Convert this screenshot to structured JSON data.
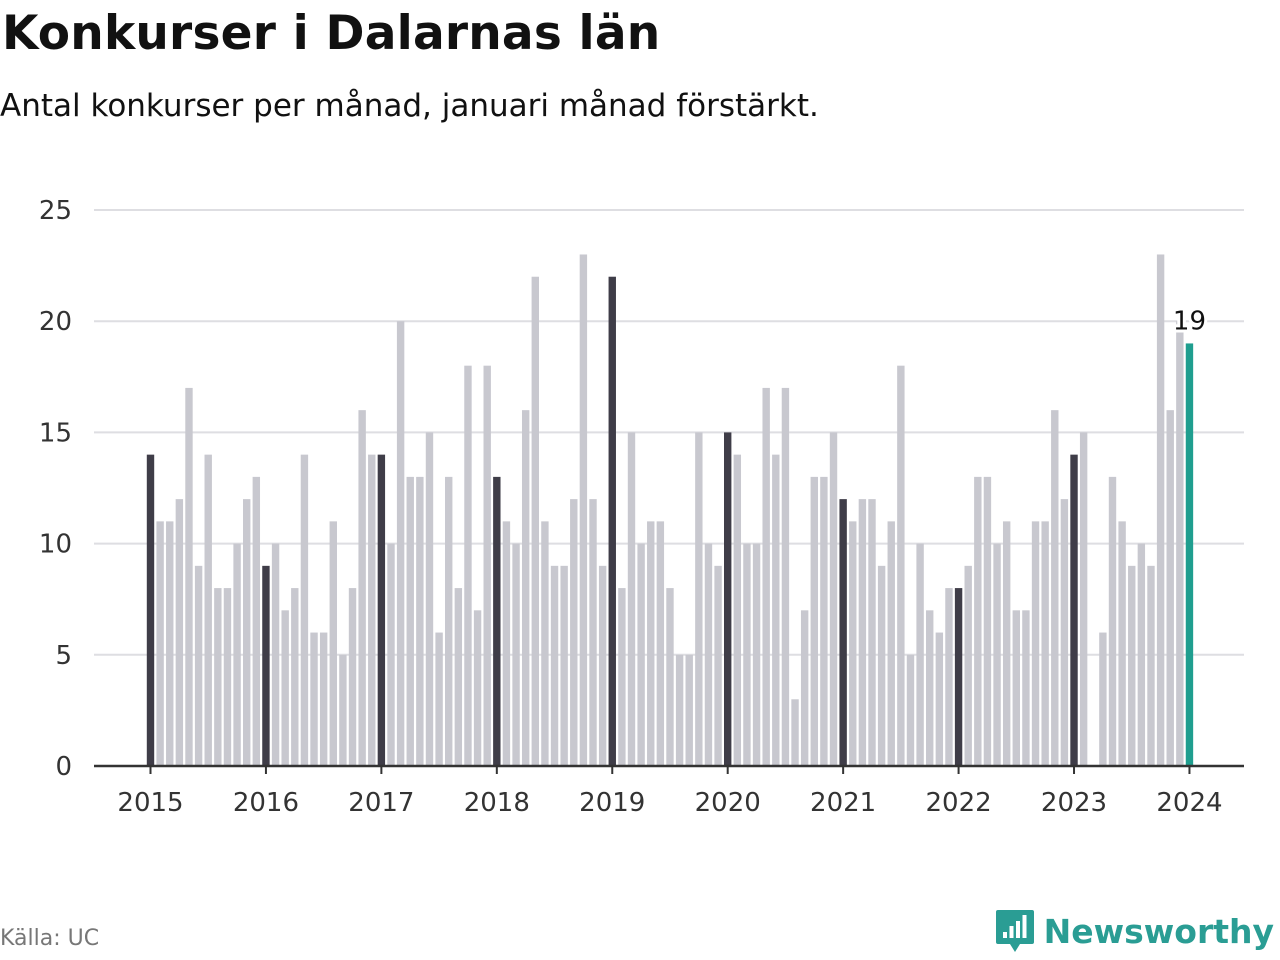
{
  "header": {
    "title": "Konkurser i Dalarnas län",
    "subtitle": "Antal konkurser per månad, januari månad förstärkt."
  },
  "footer": {
    "source": "Källa: UC",
    "brand": "Newsworthy",
    "brand_icon": "bar-chart-speech-bubble-icon"
  },
  "colors": {
    "highlight_january": "#3f3d48",
    "other_months": "#c8c8cf",
    "latest": "#1f9e8f",
    "brand": "#2a9d94",
    "grid": "#dedee2"
  },
  "chart_data": {
    "type": "bar",
    "title": "Konkurser i Dalarnas län",
    "ylim": [
      0,
      25
    ],
    "yticks": [
      "0",
      "5",
      "10",
      "15",
      "20",
      "25"
    ],
    "year_labels": [
      "2015",
      "2016",
      "2017",
      "2018",
      "2019",
      "2020",
      "2021",
      "2022",
      "2023",
      "2024"
    ],
    "first_period": "2015-01",
    "last_period": "2024-01",
    "january_highlighted": true,
    "grid": true,
    "latest_label": "19",
    "values": [
      14,
      11,
      11,
      12,
      17,
      9,
      14,
      8,
      8,
      10,
      12,
      13,
      9,
      10,
      7,
      8,
      14,
      6,
      6,
      11,
      5,
      8,
      16,
      14,
      14,
      10,
      20,
      13,
      13,
      15,
      6,
      13,
      8,
      18,
      7,
      18,
      13,
      11,
      10,
      16,
      22,
      11,
      9,
      9,
      12,
      23,
      12,
      9,
      22,
      8,
      15,
      10,
      11,
      11,
      8,
      5,
      5,
      15,
      10,
      9,
      15,
      14,
      10,
      10,
      17,
      14,
      17,
      3,
      7,
      13,
      13,
      15,
      12,
      11,
      12,
      12,
      9,
      11,
      18,
      5,
      10,
      7,
      6,
      8,
      8,
      9,
      13,
      13,
      10,
      11,
      7,
      7,
      11,
      11,
      16,
      12,
      14,
      15,
      0,
      6,
      13,
      11,
      9,
      10,
      9,
      23,
      16,
      20,
      19
    ]
  }
}
